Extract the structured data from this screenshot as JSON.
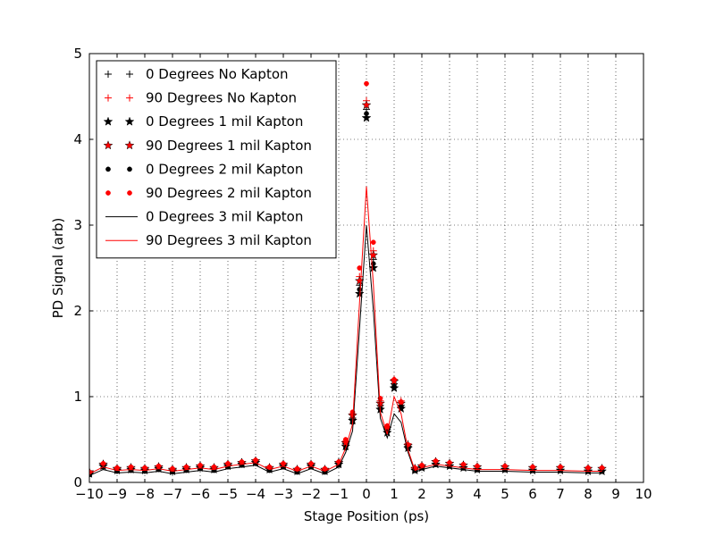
{
  "chart_data": {
    "type": "line",
    "xlabel": "Stage Position (ps)",
    "ylabel": "PD Signal (arb)",
    "xlim": [
      -10,
      10
    ],
    "ylim": [
      0,
      5
    ],
    "x_ticks": [
      "−10",
      "−9",
      "−8",
      "−7",
      "−6",
      "−5",
      "−4",
      "−3",
      "−2",
      "−1",
      "0",
      "1",
      "2",
      "3",
      "4",
      "5",
      "6",
      "7",
      "8",
      "9",
      "10"
    ],
    "y_ticks": [
      "0",
      "1",
      "2",
      "3",
      "4",
      "5"
    ],
    "grid": true,
    "legend_position": "top-left",
    "x": [
      -10.0,
      -9.5,
      -9.0,
      -8.5,
      -8.0,
      -7.5,
      -7.0,
      -6.5,
      -6.0,
      -5.5,
      -5.0,
      -4.5,
      -4.0,
      -3.5,
      -3.0,
      -2.5,
      -2.0,
      -1.5,
      -1.0,
      -0.75,
      -0.5,
      -0.25,
      0.0,
      0.25,
      0.5,
      0.75,
      1.0,
      1.25,
      1.5,
      1.75,
      2.0,
      2.5,
      3.0,
      3.5,
      4.0,
      5.0,
      6.0,
      7.0,
      8.0,
      8.5
    ],
    "series": [
      {
        "name": "0 Degrees No Kapton",
        "color": "#000000",
        "marker": "plus",
        "values": [
          0.1,
          0.2,
          0.15,
          0.16,
          0.15,
          0.17,
          0.14,
          0.16,
          0.18,
          0.16,
          0.2,
          0.22,
          0.24,
          0.16,
          0.2,
          0.14,
          0.2,
          0.14,
          0.22,
          0.45,
          0.75,
          2.3,
          4.35,
          2.6,
          0.9,
          0.62,
          1.15,
          0.9,
          0.42,
          0.15,
          0.18,
          0.22,
          0.2,
          0.18,
          0.16,
          0.16,
          0.15,
          0.15,
          0.14,
          0.14
        ]
      },
      {
        "name": "90 Degrees No Kapton",
        "color": "#ff0000",
        "marker": "plus",
        "values": [
          0.12,
          0.22,
          0.17,
          0.18,
          0.17,
          0.19,
          0.16,
          0.18,
          0.2,
          0.18,
          0.22,
          0.24,
          0.26,
          0.18,
          0.22,
          0.16,
          0.22,
          0.16,
          0.24,
          0.48,
          0.8,
          2.4,
          4.45,
          2.7,
          0.95,
          0.65,
          1.2,
          0.95,
          0.45,
          0.17,
          0.2,
          0.25,
          0.23,
          0.21,
          0.19,
          0.19,
          0.18,
          0.18,
          0.17,
          0.17
        ]
      },
      {
        "name": "0 Degrees 1 mil Kapton",
        "color": "#000000",
        "marker": "star",
        "values": [
          0.1,
          0.19,
          0.14,
          0.15,
          0.14,
          0.16,
          0.13,
          0.15,
          0.17,
          0.15,
          0.19,
          0.21,
          0.23,
          0.15,
          0.19,
          0.13,
          0.19,
          0.13,
          0.21,
          0.42,
          0.72,
          2.2,
          4.25,
          2.5,
          0.85,
          0.58,
          1.1,
          0.86,
          0.4,
          0.14,
          0.17,
          0.21,
          0.19,
          0.17,
          0.15,
          0.15,
          0.14,
          0.14,
          0.13,
          0.13
        ]
      },
      {
        "name": "90 Degrees 1 mil Kapton",
        "color": "#ff0000",
        "marker": "star",
        "values": [
          0.12,
          0.21,
          0.16,
          0.17,
          0.16,
          0.18,
          0.15,
          0.17,
          0.19,
          0.17,
          0.21,
          0.23,
          0.25,
          0.17,
          0.21,
          0.15,
          0.21,
          0.15,
          0.23,
          0.46,
          0.78,
          2.35,
          4.4,
          2.65,
          0.92,
          0.63,
          1.18,
          0.92,
          0.43,
          0.16,
          0.19,
          0.24,
          0.22,
          0.2,
          0.18,
          0.18,
          0.17,
          0.17,
          0.16,
          0.16
        ]
      },
      {
        "name": "0 Degrees 2 mil Kapton",
        "color": "#000000",
        "marker": "dot",
        "values": [
          0.09,
          0.18,
          0.13,
          0.14,
          0.13,
          0.15,
          0.12,
          0.14,
          0.16,
          0.14,
          0.18,
          0.2,
          0.22,
          0.14,
          0.18,
          0.12,
          0.18,
          0.12,
          0.2,
          0.4,
          0.7,
          2.25,
          4.3,
          2.55,
          0.86,
          0.59,
          1.12,
          0.88,
          0.41,
          0.14,
          0.17,
          0.21,
          0.19,
          0.17,
          0.15,
          0.15,
          0.14,
          0.14,
          0.13,
          0.13
        ]
      },
      {
        "name": "90 Degrees 2 mil Kapton",
        "color": "#ff0000",
        "marker": "dot",
        "values": [
          0.12,
          0.22,
          0.17,
          0.18,
          0.17,
          0.19,
          0.16,
          0.18,
          0.2,
          0.18,
          0.22,
          0.24,
          0.26,
          0.18,
          0.22,
          0.16,
          0.22,
          0.16,
          0.24,
          0.5,
          0.82,
          2.5,
          4.65,
          2.8,
          0.98,
          0.66,
          1.2,
          0.94,
          0.44,
          0.17,
          0.2,
          0.25,
          0.23,
          0.21,
          0.19,
          0.19,
          0.18,
          0.18,
          0.17,
          0.17
        ]
      },
      {
        "name": "0 Degrees 3 mil Kapton",
        "color": "#000000",
        "marker": "none",
        "values": [
          0.08,
          0.15,
          0.11,
          0.12,
          0.11,
          0.13,
          0.1,
          0.12,
          0.14,
          0.12,
          0.16,
          0.18,
          0.2,
          0.12,
          0.16,
          0.1,
          0.16,
          0.1,
          0.18,
          0.35,
          0.6,
          1.8,
          3.0,
          2.0,
          0.75,
          0.52,
          0.8,
          0.7,
          0.35,
          0.12,
          0.15,
          0.19,
          0.17,
          0.15,
          0.13,
          0.13,
          0.12,
          0.12,
          0.11,
          0.11
        ]
      },
      {
        "name": "90 Degrees 3 mil Kapton",
        "color": "#ff0000",
        "marker": "none",
        "values": [
          0.1,
          0.18,
          0.14,
          0.15,
          0.14,
          0.16,
          0.13,
          0.15,
          0.17,
          0.15,
          0.19,
          0.21,
          0.23,
          0.15,
          0.19,
          0.13,
          0.19,
          0.13,
          0.21,
          0.4,
          0.68,
          2.1,
          3.45,
          2.3,
          0.82,
          0.56,
          1.0,
          0.8,
          0.38,
          0.14,
          0.17,
          0.21,
          0.19,
          0.17,
          0.15,
          0.15,
          0.14,
          0.14,
          0.13,
          0.13
        ]
      }
    ]
  }
}
